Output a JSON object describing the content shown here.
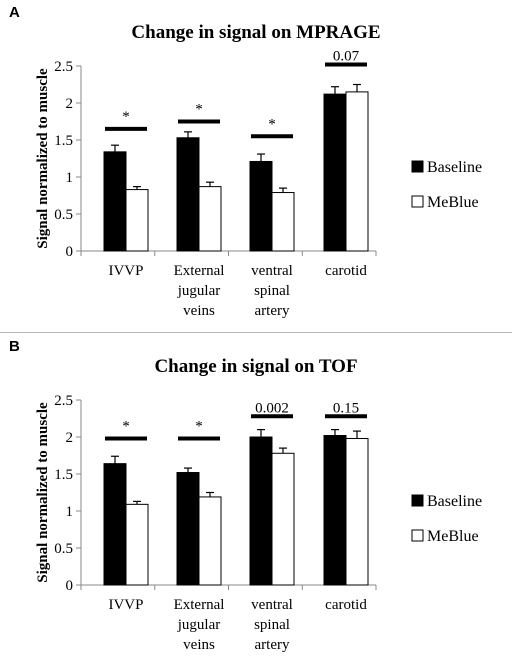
{
  "panels": [
    {
      "letter": "A",
      "chart_data": {
        "type": "bar",
        "title": "Change in signal on MPRAGE",
        "xlabel": "",
        "ylabel": "Signal normalized to muscle",
        "ylim": [
          0,
          2.5
        ],
        "yticks": [
          "0",
          "0.5",
          "1",
          "1.5",
          "2",
          "2.5"
        ],
        "categories": [
          [
            "IVVP"
          ],
          [
            "External",
            "jugular",
            "veins"
          ],
          [
            "ventral",
            "spinal",
            "artery"
          ],
          [
            "carotid"
          ]
        ],
        "series": [
          {
            "name": "Baseline",
            "color": "#000000",
            "values": [
              1.34,
              1.53,
              1.21,
              2.12
            ],
            "errors": [
              0.09,
              0.08,
              0.1,
              0.1
            ]
          },
          {
            "name": "MeBlue",
            "color": "#ffffff",
            "values": [
              0.83,
              0.87,
              0.79,
              2.15
            ],
            "errors": [
              0.04,
              0.06,
              0.06,
              0.1
            ]
          }
        ],
        "significance": [
          "*",
          "*",
          "*",
          "0.07"
        ],
        "significance_y": [
          1.65,
          1.75,
          1.55,
          2.52
        ],
        "legend": "right",
        "grid": false
      }
    },
    {
      "letter": "B",
      "chart_data": {
        "type": "bar",
        "title": "Change in signal on TOF",
        "xlabel": "",
        "ylabel": "Signal normalized to muscle",
        "ylim": [
          0,
          2.5
        ],
        "yticks": [
          "0",
          "0.5",
          "1",
          "1.5",
          "2",
          "2.5"
        ],
        "categories": [
          [
            "IVVP"
          ],
          [
            "External",
            "jugular",
            "veins"
          ],
          [
            "ventral",
            "spinal",
            "artery"
          ],
          [
            "carotid"
          ]
        ],
        "series": [
          {
            "name": "Baseline",
            "color": "#000000",
            "values": [
              1.64,
              1.52,
              2.0,
              2.02
            ],
            "errors": [
              0.1,
              0.06,
              0.1,
              0.08
            ]
          },
          {
            "name": "MeBlue",
            "color": "#ffffff",
            "values": [
              1.09,
              1.19,
              1.78,
              1.98
            ],
            "errors": [
              0.04,
              0.06,
              0.07,
              0.1
            ]
          }
        ],
        "significance": [
          "*",
          "*",
          "0.002",
          "0.15"
        ],
        "significance_y": [
          1.98,
          1.98,
          2.28,
          2.28
        ],
        "legend": "right",
        "grid": false
      }
    }
  ]
}
